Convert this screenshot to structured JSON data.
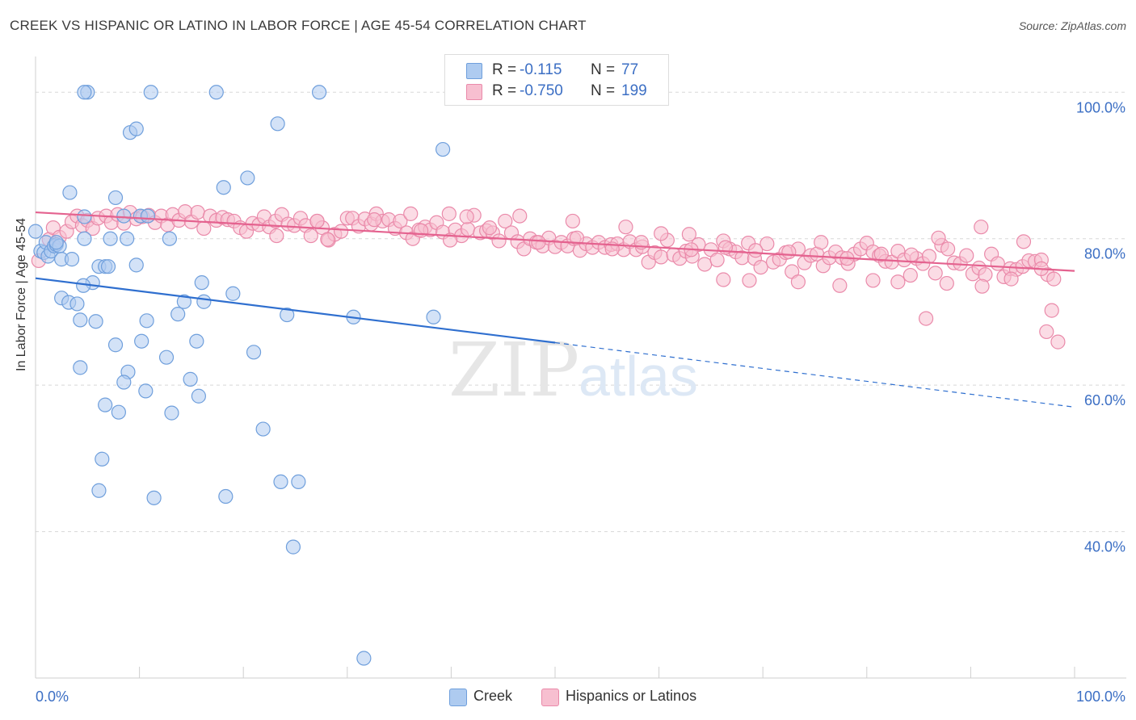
{
  "header": {
    "title": "CREEK VS HISPANIC OR LATINO IN LABOR FORCE | AGE 45-54 CORRELATION CHART",
    "source": "Source: ZipAtlas.com"
  },
  "watermark": {
    "zip": "ZIP",
    "atlas": "atlas"
  },
  "legend_top": {
    "rows": [
      {
        "r_label": "R =",
        "r_value": "-0.115",
        "n_label": "N =",
        "n_value": "77"
      },
      {
        "r_label": "R =",
        "r_value": "-0.750",
        "n_label": "N =",
        "n_value": "199"
      }
    ]
  },
  "legend_bottom": {
    "items": [
      {
        "label": "Creek"
      },
      {
        "label": "Hispanics or Latinos"
      }
    ]
  },
  "colors": {
    "creek_fill": "#aecbf0",
    "creek_stroke": "#6f9fdc",
    "creek_line": "#2f6fcf",
    "hisp_fill": "#f7bfd0",
    "hisp_stroke": "#ea8aaa",
    "hisp_line": "#e4628f",
    "tick_text": "#3c6fc4",
    "grid": "#d8d8d8"
  },
  "chart_data": {
    "type": "scatter",
    "title": "CREEK VS HISPANIC OR LATINO IN LABOR FORCE | AGE 45-54 CORRELATION CHART",
    "xlabel": "",
    "ylabel": "In Labor Force | Age 45-54",
    "xlim": [
      0,
      100
    ],
    "ylim": [
      20,
      104
    ],
    "x_tick_labels": [
      "0.0%",
      "100.0%"
    ],
    "y_ticks": [
      40,
      60,
      80,
      100
    ],
    "y_tick_labels": [
      "40.0%",
      "60.0%",
      "80.0%",
      "100.0%"
    ],
    "grid": true,
    "legend_position": "top-center",
    "series": [
      {
        "name": "Creek",
        "stats": {
          "R": -0.115,
          "N": 77
        },
        "trend": {
          "x0": 0,
          "y0": 74.6,
          "x1": 50,
          "y1": 65.8,
          "dashed_to_x": 100,
          "dashed_to_y": 57.0
        },
        "points": [
          [
            0,
            81
          ],
          [
            0.5,
            78.3
          ],
          [
            0.8,
            78.1
          ],
          [
            1,
            79.5
          ],
          [
            1.2,
            77.6
          ],
          [
            1.5,
            78.3
          ],
          [
            1.8,
            79
          ],
          [
            2,
            79.2
          ],
          [
            2.3,
            79
          ],
          [
            2.5,
            77.2
          ],
          [
            3.5,
            77.2
          ],
          [
            2,
            79.5
          ],
          [
            3.3,
            86.3
          ],
          [
            4.7,
            83
          ],
          [
            5,
            100
          ],
          [
            4.7,
            100
          ],
          [
            11.1,
            100
          ],
          [
            17.4,
            100
          ],
          [
            27.3,
            100
          ],
          [
            9.1,
            94.5
          ],
          [
            9.7,
            95
          ],
          [
            23.3,
            95.7
          ],
          [
            20.4,
            88.3
          ],
          [
            18.1,
            87
          ],
          [
            7.7,
            85.6
          ],
          [
            8.5,
            83.1
          ],
          [
            10.1,
            83.1
          ],
          [
            10.8,
            83.1
          ],
          [
            4.7,
            80
          ],
          [
            7.2,
            80
          ],
          [
            8.8,
            80
          ],
          [
            12.9,
            80
          ],
          [
            6.1,
            76.2
          ],
          [
            6.7,
            76.2
          ],
          [
            7,
            76.2
          ],
          [
            9.7,
            76.4
          ],
          [
            5.5,
            74
          ],
          [
            4.6,
            73.6
          ],
          [
            16,
            74
          ],
          [
            19,
            72.5
          ],
          [
            2.5,
            71.9
          ],
          [
            3.2,
            71.3
          ],
          [
            4,
            71.1
          ],
          [
            14.3,
            71.4
          ],
          [
            16.2,
            71.4
          ],
          [
            13.7,
            69.7
          ],
          [
            24.2,
            69.6
          ],
          [
            30.6,
            69.3
          ],
          [
            38.3,
            69.3
          ],
          [
            4.3,
            68.9
          ],
          [
            5.8,
            68.7
          ],
          [
            10.7,
            68.8
          ],
          [
            10.2,
            66
          ],
          [
            15.5,
            66
          ],
          [
            7.7,
            65.5
          ],
          [
            21,
            64.5
          ],
          [
            12.6,
            63.8
          ],
          [
            4.3,
            62.4
          ],
          [
            8.9,
            61.8
          ],
          [
            14.9,
            60.8
          ],
          [
            8.5,
            60.4
          ],
          [
            10.6,
            59.2
          ],
          [
            15.7,
            58.5
          ],
          [
            6.7,
            57.3
          ],
          [
            8,
            56.3
          ],
          [
            13.1,
            56.2
          ],
          [
            21.9,
            54
          ],
          [
            6.4,
            49.9
          ],
          [
            6.1,
            45.6
          ],
          [
            11.4,
            44.6
          ],
          [
            18.3,
            44.8
          ],
          [
            23.6,
            46.8
          ],
          [
            25.3,
            46.8
          ],
          [
            24.8,
            37.9
          ],
          [
            31.6,
            22.7
          ],
          [
            39.2,
            92.2
          ]
        ]
      },
      {
        "name": "Hispanics or Latinos",
        "stats": {
          "R": -0.75,
          "N": 199
        },
        "trend": {
          "x0": 0,
          "y0": 83.6,
          "x1": 100,
          "y1": 75.6
        },
        "points": [
          [
            0.3,
            77
          ],
          [
            1.3,
            79.9
          ],
          [
            1.7,
            81.5
          ],
          [
            2.3,
            80.2
          ],
          [
            3,
            81
          ],
          [
            3.5,
            82.3
          ],
          [
            4,
            83.1
          ],
          [
            4.5,
            81.8
          ],
          [
            5,
            82.5
          ],
          [
            5.5,
            81.4
          ],
          [
            6,
            82.8
          ],
          [
            6.8,
            83.1
          ],
          [
            7.3,
            82.2
          ],
          [
            7.9,
            83.3
          ],
          [
            8.5,
            82.1
          ],
          [
            9.1,
            83.6
          ],
          [
            9.7,
            82.7
          ],
          [
            10.3,
            83
          ],
          [
            10.9,
            83.2
          ],
          [
            11.5,
            82.2
          ],
          [
            12.1,
            83.1
          ],
          [
            12.7,
            81.9
          ],
          [
            13.2,
            83.3
          ],
          [
            13.8,
            82.5
          ],
          [
            14.4,
            83.7
          ],
          [
            15,
            82.3
          ],
          [
            15.6,
            83.6
          ],
          [
            16.2,
            81.4
          ],
          [
            16.8,
            83.1
          ],
          [
            17.4,
            82.5
          ],
          [
            18,
            82.9
          ],
          [
            18.5,
            82.6
          ],
          [
            19.1,
            82.4
          ],
          [
            19.7,
            81.5
          ],
          [
            20.3,
            81
          ],
          [
            20.9,
            82.1
          ],
          [
            21.5,
            81.9
          ],
          [
            22,
            83
          ],
          [
            22.5,
            81.6
          ],
          [
            23.1,
            82.4
          ],
          [
            23.7,
            83.3
          ],
          [
            24.3,
            82
          ],
          [
            24.9,
            81.8
          ],
          [
            25.5,
            82.8
          ],
          [
            26,
            81.8
          ],
          [
            26.5,
            80.4
          ],
          [
            27.1,
            82.4
          ],
          [
            27.6,
            81.5
          ],
          [
            28.2,
            79.8
          ],
          [
            28.8,
            80.6
          ],
          [
            29.4,
            81
          ],
          [
            30,
            82.8
          ],
          [
            30.5,
            82.8
          ],
          [
            31.1,
            81.7
          ],
          [
            31.7,
            82.7
          ],
          [
            32.3,
            82
          ],
          [
            32.8,
            83.4
          ],
          [
            33.4,
            82.4
          ],
          [
            34,
            82.6
          ],
          [
            34.6,
            81.4
          ],
          [
            35.1,
            82.4
          ],
          [
            35.7,
            80.8
          ],
          [
            36.3,
            80
          ],
          [
            36.9,
            81.2
          ],
          [
            37.5,
            81.6
          ],
          [
            38,
            81.2
          ],
          [
            38.6,
            82.2
          ],
          [
            39.2,
            80.9
          ],
          [
            39.8,
            83.4
          ],
          [
            40.4,
            81.2
          ],
          [
            41,
            80.4
          ],
          [
            41.6,
            81.3
          ],
          [
            42.2,
            83.2
          ],
          [
            42.8,
            80.8
          ],
          [
            43.4,
            81.1
          ],
          [
            44,
            80.8
          ],
          [
            44.6,
            79.7
          ],
          [
            45.2,
            82.4
          ],
          [
            45.8,
            80.8
          ],
          [
            46.4,
            79.6
          ],
          [
            47,
            78.6
          ],
          [
            47.6,
            80
          ],
          [
            48.2,
            79.5
          ],
          [
            48.8,
            79
          ],
          [
            49.4,
            80.1
          ],
          [
            50,
            78.9
          ],
          [
            50.6,
            79.5
          ],
          [
            51.2,
            79
          ],
          [
            51.8,
            80
          ],
          [
            52.4,
            78.4
          ],
          [
            53,
            79.3
          ],
          [
            53.6,
            78.8
          ],
          [
            54.2,
            79.5
          ],
          [
            54.8,
            78.8
          ],
          [
            55.4,
            79.2
          ],
          [
            56,
            79.3
          ],
          [
            56.6,
            78.5
          ],
          [
            57.2,
            79.6
          ],
          [
            57.8,
            78.5
          ],
          [
            58.4,
            78.9
          ],
          [
            59,
            76.8
          ],
          [
            59.6,
            78.1
          ],
          [
            60.2,
            77.5
          ],
          [
            60.8,
            79.8
          ],
          [
            61.4,
            77.8
          ],
          [
            62,
            77.3
          ],
          [
            62.6,
            78.3
          ],
          [
            63.2,
            77.6
          ],
          [
            63.8,
            79.2
          ],
          [
            64.4,
            76.5
          ],
          [
            65,
            78.5
          ],
          [
            65.6,
            77.1
          ],
          [
            66.2,
            79.7
          ],
          [
            66.8,
            78.6
          ],
          [
            67.4,
            78.2
          ],
          [
            68,
            77.4
          ],
          [
            68.6,
            79.4
          ],
          [
            69.2,
            77.3
          ],
          [
            69.8,
            76.1
          ],
          [
            70.4,
            79.3
          ],
          [
            71,
            76.8
          ],
          [
            71.6,
            77.2
          ],
          [
            72.2,
            78.1
          ],
          [
            72.8,
            75.5
          ],
          [
            73.4,
            78.6
          ],
          [
            74,
            76.7
          ],
          [
            74.6,
            77.7
          ],
          [
            75.2,
            77.9
          ],
          [
            75.8,
            76.3
          ],
          [
            76.4,
            77.4
          ],
          [
            77,
            78.2
          ],
          [
            77.6,
            77.4
          ],
          [
            78.2,
            76.6
          ],
          [
            78.8,
            77.9
          ],
          [
            79.4,
            78.6
          ],
          [
            80,
            79.4
          ],
          [
            80.6,
            78.2
          ],
          [
            81.2,
            77.7
          ],
          [
            81.8,
            76.9
          ],
          [
            82.4,
            76.8
          ],
          [
            83,
            78.3
          ],
          [
            83.6,
            77.1
          ],
          [
            84.2,
            75
          ],
          [
            84.8,
            77.3
          ],
          [
            85.4,
            76.6
          ],
          [
            86,
            77.6
          ],
          [
            86.6,
            75.3
          ],
          [
            87.2,
            79.1
          ],
          [
            87.8,
            78.6
          ],
          [
            88.4,
            76.7
          ],
          [
            89,
            76.6
          ],
          [
            89.6,
            77.7
          ],
          [
            90.2,
            75.2
          ],
          [
            90.8,
            76
          ],
          [
            91.4,
            75.1
          ],
          [
            92,
            77.9
          ],
          [
            92.6,
            76.6
          ],
          [
            93.2,
            74.8
          ],
          [
            93.8,
            75.9
          ],
          [
            94.4,
            75.8
          ],
          [
            95,
            76.2
          ],
          [
            95.6,
            77
          ],
          [
            96.2,
            76.9
          ],
          [
            96.8,
            77.1
          ],
          [
            97.4,
            75.1
          ],
          [
            98,
            74.5
          ],
          [
            28.1,
            79.9
          ],
          [
            37.1,
            81.1
          ],
          [
            39.9,
            79.8
          ],
          [
            43.7,
            81.5
          ],
          [
            48.4,
            79.5
          ],
          [
            52.1,
            80.1
          ],
          [
            55.5,
            78.6
          ],
          [
            58.3,
            79.5
          ],
          [
            60.2,
            80.7
          ],
          [
            63.1,
            78.5
          ],
          [
            66.4,
            78.8
          ],
          [
            69.3,
            78.4
          ],
          [
            72.5,
            78.2
          ],
          [
            75.6,
            79.5
          ],
          [
            78.1,
            77.3
          ],
          [
            81.4,
            77.9
          ],
          [
            84.3,
            77.8
          ],
          [
            87.7,
            73.9
          ],
          [
            91.1,
            73.5
          ],
          [
            93.9,
            74.5
          ],
          [
            96.8,
            75.9
          ],
          [
            97.8,
            70.2
          ],
          [
            97.3,
            67.3
          ],
          [
            98.4,
            65.9
          ],
          [
            85.7,
            69.1
          ],
          [
            77.4,
            73.6
          ],
          [
            80.6,
            74.3
          ],
          [
            83,
            74.1
          ],
          [
            73.4,
            74.1
          ],
          [
            68.7,
            74.3
          ],
          [
            66.2,
            74.4
          ],
          [
            95.1,
            79.6
          ],
          [
            91,
            81.6
          ],
          [
            86.9,
            80.1
          ],
          [
            62.9,
            80.6
          ],
          [
            56.8,
            81.6
          ],
          [
            51.7,
            82.4
          ],
          [
            46.6,
            83.1
          ],
          [
            41.5,
            83
          ],
          [
            36.1,
            83.4
          ],
          [
            32.6,
            82.6
          ],
          [
            27.1,
            82.4
          ],
          [
            23.2,
            80.4
          ]
        ]
      }
    ]
  }
}
